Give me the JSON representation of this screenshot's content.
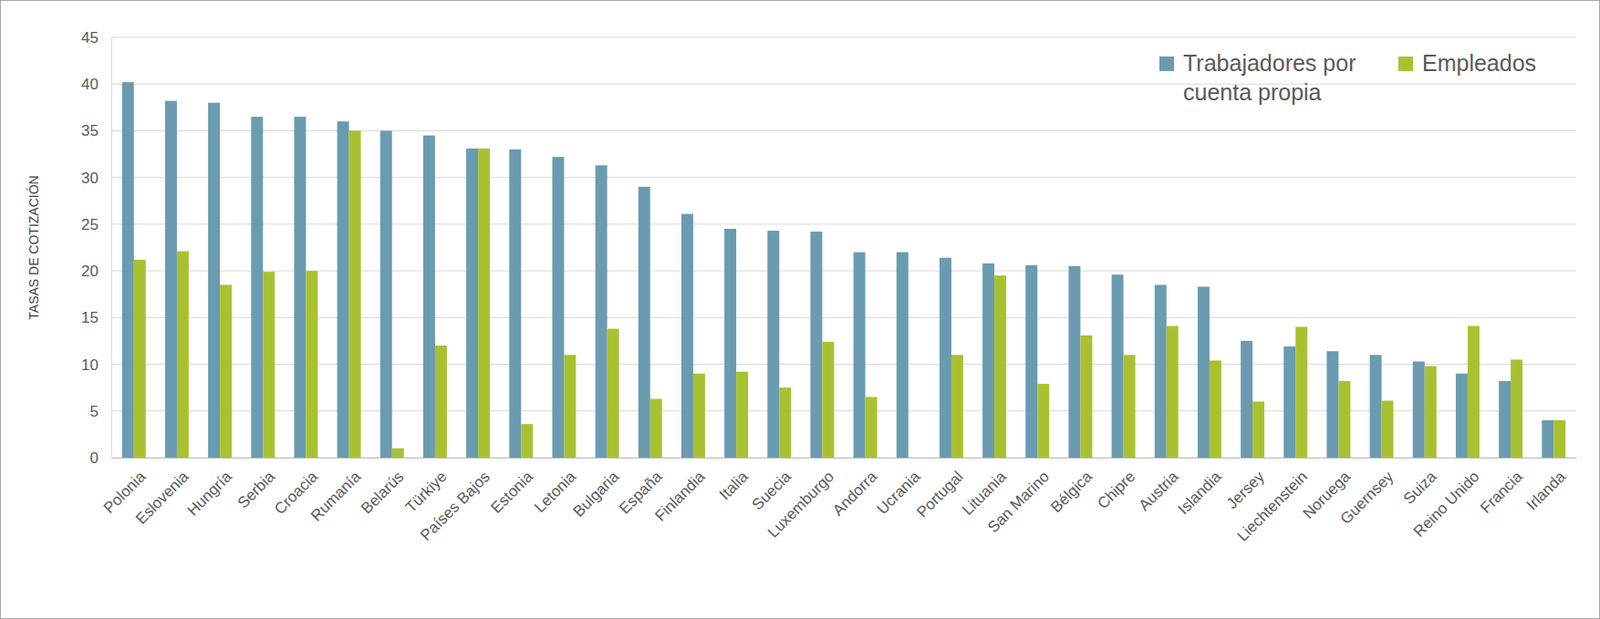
{
  "chart_data": {
    "type": "bar",
    "y_label": "TASAS DE COTIZACIÓN",
    "categories": [
      "Polonia",
      "Eslovenia",
      "Hungría",
      "Serbia",
      "Croacia",
      "Rumanía",
      "Belarús",
      "Türkiye",
      "Países Bajos",
      "Estonia",
      "Letonia",
      "Bulgaria",
      "España",
      "Finlandia",
      "Italia",
      "Suecia",
      "Luxemburgo",
      "Andorra",
      "Ucrania",
      "Portugal",
      "Lituania",
      "San Marino",
      "Bélgica",
      "Chipre",
      "Austria",
      "Islandia",
      "Jersey",
      "Liechtenstein",
      "Noruega",
      "Guernsey",
      "Suiza",
      "Reino Unido",
      "Francia",
      "Irlanda"
    ],
    "series": [
      {
        "name": "Trabajadores por cuenta propia",
        "color": "#6a9bb0",
        "values": [
          40.2,
          38.2,
          38,
          36.5,
          36.5,
          36,
          35,
          34.5,
          33.1,
          33,
          32.2,
          31.3,
          29,
          26.1,
          24.5,
          24.3,
          24.2,
          22,
          22,
          21.4,
          20.8,
          20.6,
          20.5,
          19.6,
          18.5,
          18.3,
          12.5,
          11.9,
          11.4,
          11,
          10.3,
          9,
          8.2,
          4
        ]
      },
      {
        "name": "Empleados",
        "color": "#a9c131",
        "values": [
          21.2,
          22.1,
          18.5,
          19.9,
          20,
          35,
          1,
          12,
          33.1,
          3.6,
          11,
          13.8,
          6.3,
          9,
          9.2,
          7.5,
          12.4,
          6.5,
          null,
          11,
          19.5,
          7.9,
          13.1,
          11,
          14.1,
          10.4,
          6,
          14,
          8.2,
          6.1,
          9.8,
          14.1,
          10.5,
          4
        ]
      }
    ],
    "ylim": [
      0,
      45
    ],
    "yticks": [
      0,
      5,
      10,
      15,
      20,
      25,
      30,
      35,
      40,
      45
    ],
    "grid": true,
    "legend": "top-right"
  }
}
